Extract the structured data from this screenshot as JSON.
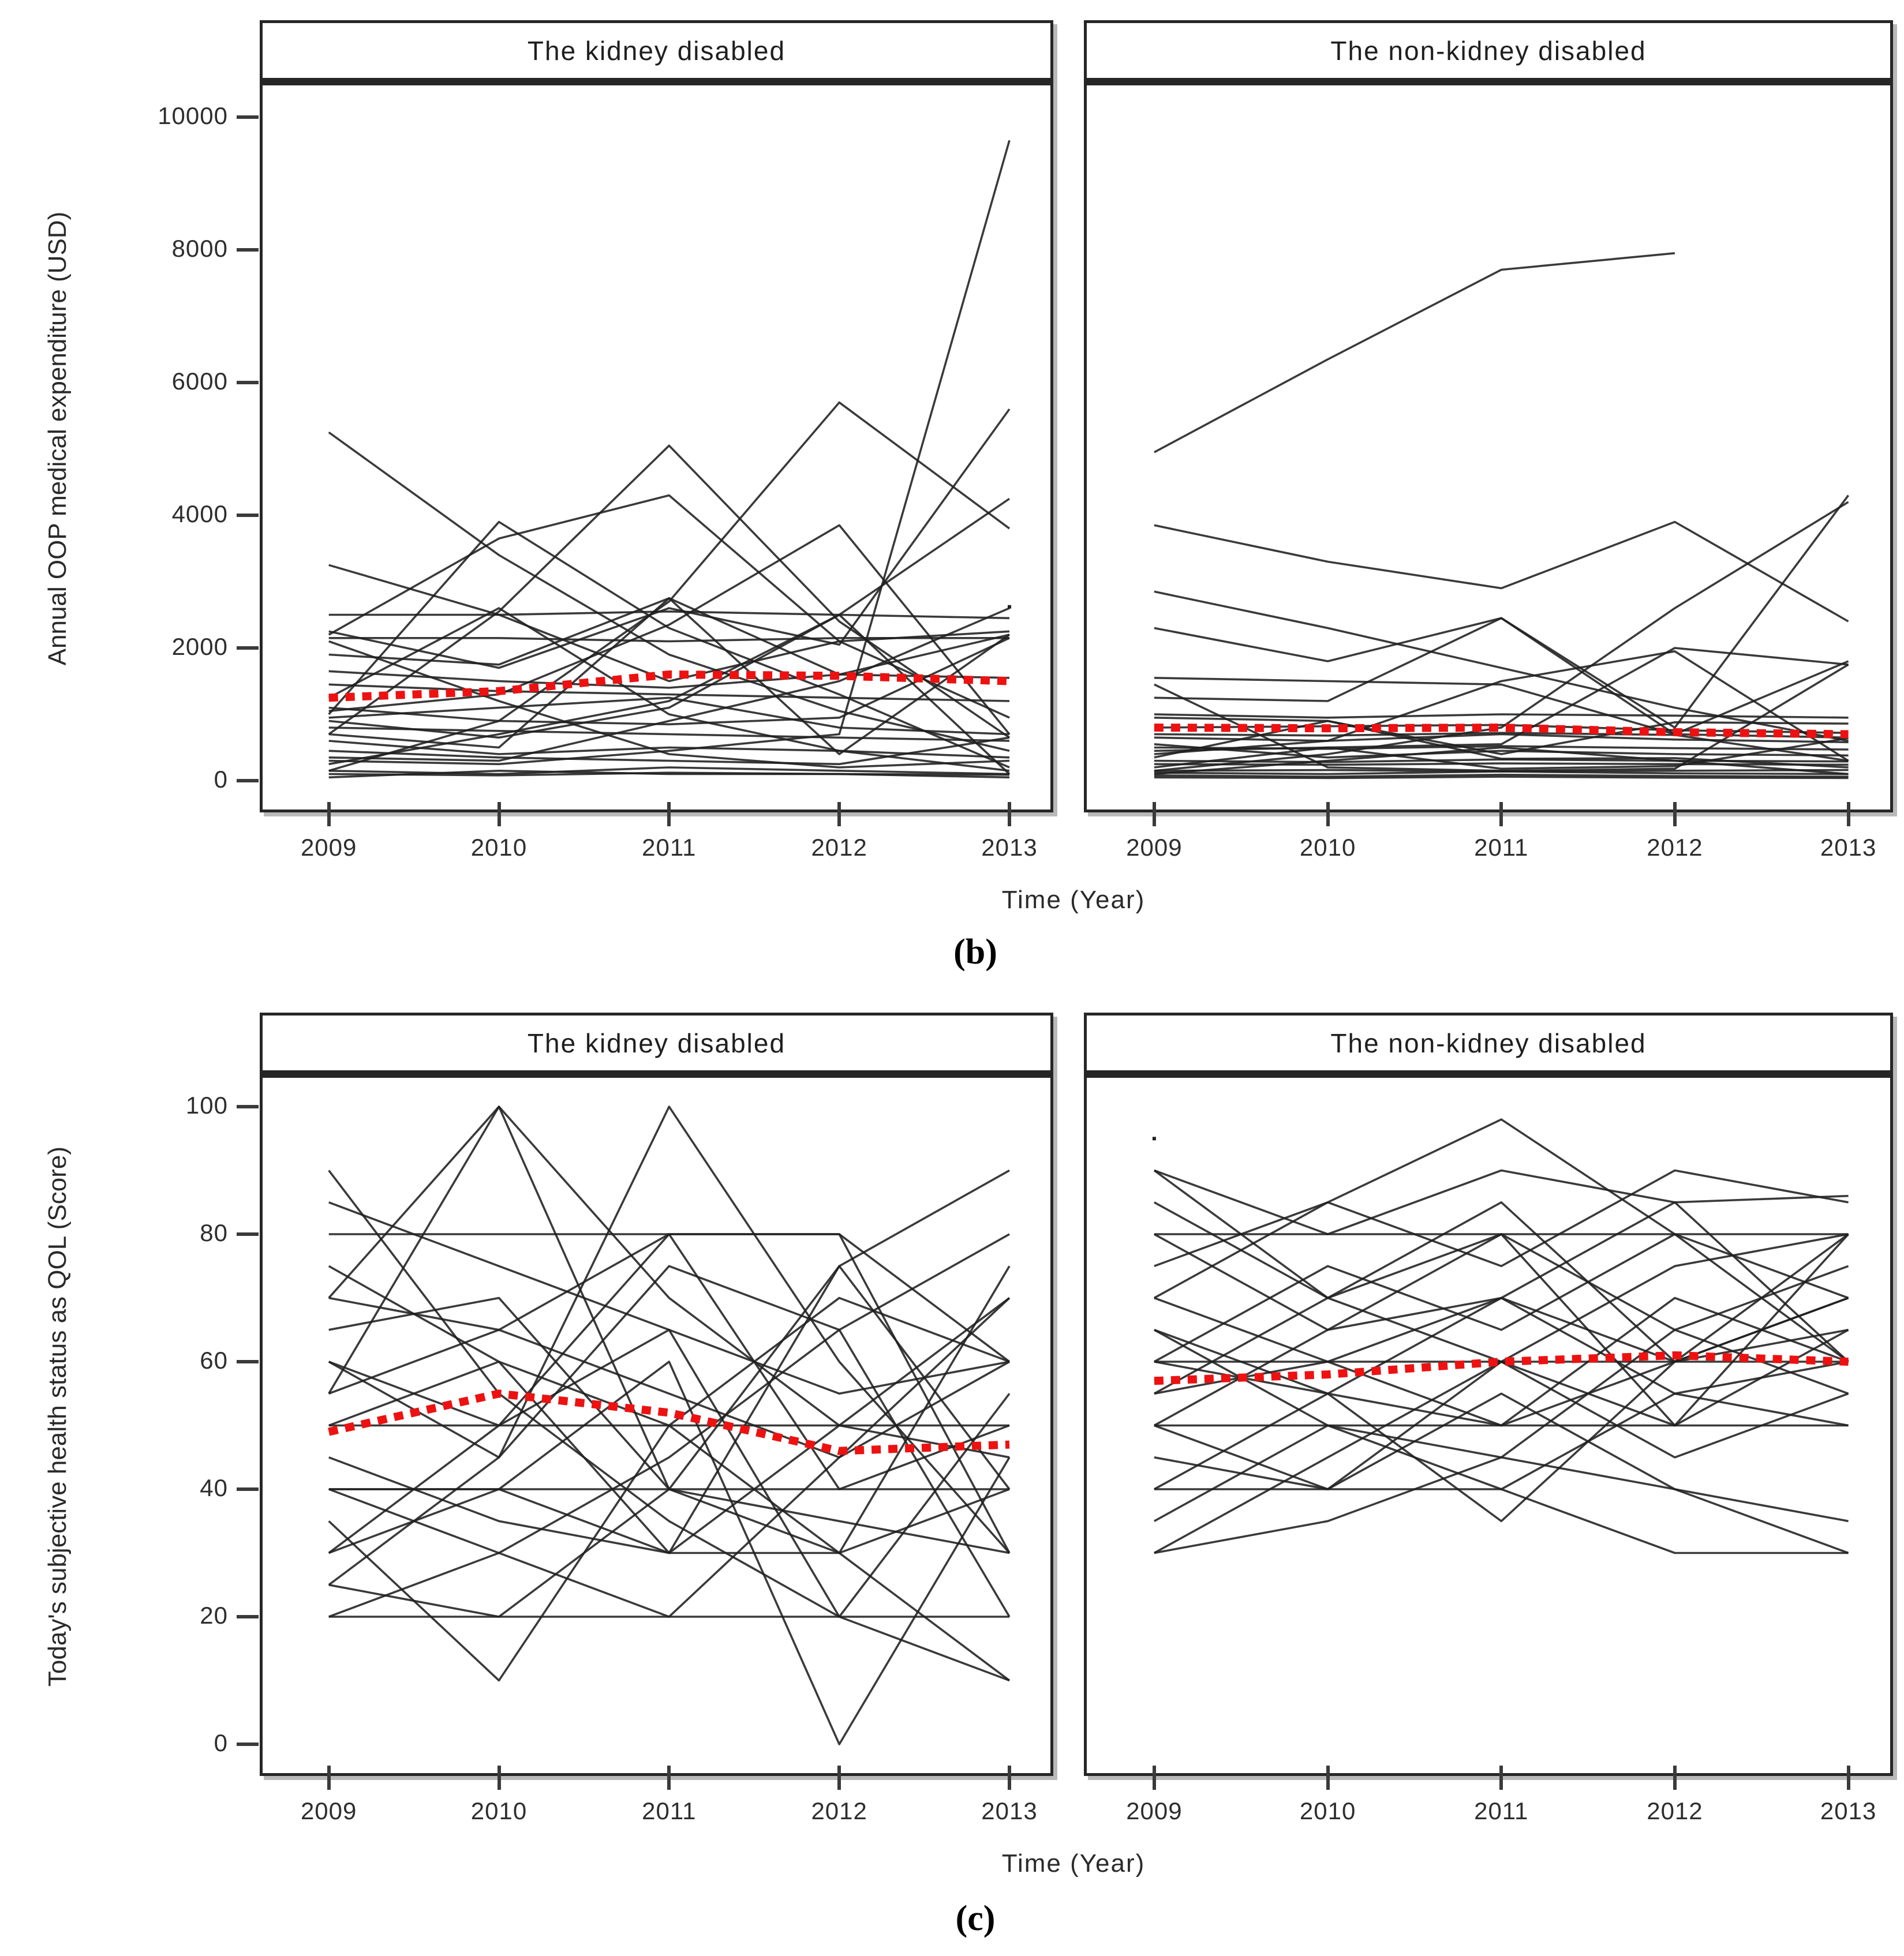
{
  "colors": {
    "individual_line": "#1f1f1f",
    "mean_line": "#ee1111",
    "axis": "#262626",
    "shadow": "#b9b9b9",
    "background": "#ffffff"
  },
  "chart_data": [
    {
      "id": "b",
      "type": "line",
      "caption": "(b)",
      "xlabel": "Time (Year)",
      "ylabel": "Annual OOP medical expenditure (USD)",
      "x": [
        2009,
        2010,
        2011,
        2012,
        2013
      ],
      "x_tick_labels": [
        "2009",
        "2010",
        "2011",
        "2012",
        "2013"
      ],
      "ylim": [
        0,
        10000
      ],
      "yticks": [
        0,
        2000,
        4000,
        6000,
        8000,
        10000
      ],
      "grid": false,
      "legend": "none",
      "panels": [
        {
          "title": "The kidney disabled",
          "mean": [
            1250,
            1350,
            1600,
            1580,
            1500
          ],
          "markers": [
            {
              "x": 2013,
              "y": 2620
            }
          ],
          "series": [
            [
              5250,
              3400,
              1900,
              1050,
              450
            ],
            [
              3250,
              2500,
              1500,
              2100,
              2250
            ],
            [
              1000,
              3900,
              2300,
              1300,
              200
            ],
            [
              700,
              2550,
              5050,
              2400,
              650
            ],
            [
              2200,
              3650,
              4300,
              2100,
              950
            ],
            [
              150,
              900,
              2700,
              5700,
              3800
            ],
            [
              300,
              250,
              450,
              700,
              9650
            ],
            [
              2250,
              1700,
              2600,
              2050,
              5600
            ],
            [
              1050,
              1300,
              2350,
              3850,
              700
            ],
            [
              900,
              650,
              1100,
              2500,
              4250
            ],
            [
              2500,
              2500,
              2550,
              2500,
              2450
            ],
            [
              2150,
              2150,
              2100,
              2150,
              2150
            ],
            [
              1900,
              1750,
              2750,
              1600,
              2200
            ],
            [
              1250,
              2600,
              1000,
              450,
              150
            ],
            [
              1650,
              1500,
              1400,
              1600,
              1550
            ],
            [
              950,
              1100,
              1250,
              800,
              700
            ],
            [
              250,
              700,
              1200,
              2500,
              100
            ],
            [
              700,
              500,
              2750,
              400,
              2200
            ],
            [
              1100,
              900,
              850,
              950,
              2150
            ],
            [
              450,
              350,
              300,
              250,
              650
            ],
            [
              150,
              100,
              200,
              150,
              100
            ],
            [
              50,
              150,
              100,
              100,
              50
            ],
            [
              2100,
              1200,
              400,
              200,
              300
            ],
            [
              600,
              400,
              500,
              450,
              350
            ],
            [
              100,
              80,
              120,
              100,
              90
            ],
            [
              800,
              750,
              700,
              650,
              600
            ],
            [
              350,
              300,
              900,
              1500,
              2600
            ],
            [
              1450,
              1350,
              1300,
              1250,
              1200
            ]
          ]
        },
        {
          "title": "The non-kidney disabled",
          "mean": [
            800,
            790,
            800,
            730,
            700
          ],
          "markers": [],
          "series": [
            [
              4950,
              6350,
              7700,
              7950,
              null
            ],
            [
              3850,
              3300,
              2900,
              3900,
              2400
            ],
            [
              2850,
              2300,
              1700,
              1100,
              600
            ],
            [
              2300,
              1800,
              2450,
              800,
              4300
            ],
            [
              150,
              400,
              800,
              2600,
              4200
            ],
            [
              1550,
              1500,
              1450,
              700,
              1800
            ],
            [
              800,
              820,
              840,
              760,
              720
            ],
            [
              1250,
              1200,
              2450,
              700,
              650
            ],
            [
              400,
              600,
              1500,
              1950,
              300
            ],
            [
              450,
              500,
              550,
              2000,
              1750
            ],
            [
              120,
              100,
              140,
              110,
              100
            ],
            [
              300,
              280,
              320,
              300,
              290
            ],
            [
              200,
              500,
              180,
              220,
              640
            ],
            [
              80,
              60,
              90,
              70,
              60
            ],
            [
              500,
              480,
              520,
              490,
              470
            ],
            [
              650,
              600,
              700,
              620,
              580
            ],
            [
              50,
              40,
              60,
              45,
              40
            ],
            [
              950,
              900,
              400,
              880,
              860
            ],
            [
              1450,
              200,
              150,
              180,
              1750
            ],
            [
              250,
              240,
              260,
              250,
              240
            ],
            [
              550,
              350,
              450,
              400,
              380
            ],
            [
              150,
              160,
              140,
              150,
              160
            ],
            [
              700,
              680,
              720,
              690,
              300
            ],
            [
              350,
              900,
              330,
              340,
              200
            ],
            [
              100,
              300,
              500,
              300,
              100
            ],
            [
              1000,
              950,
              1000,
              980,
              950
            ]
          ]
        }
      ]
    },
    {
      "id": "c",
      "type": "line",
      "caption": "(c)",
      "xlabel": "Time (Year)",
      "ylabel": "Today's subjective health status as QOL (Score)",
      "x": [
        2009,
        2010,
        2011,
        2012,
        2013
      ],
      "x_tick_labels": [
        "2009",
        "2010",
        "2011",
        "2012",
        "2013"
      ],
      "ylim": [
        0,
        100
      ],
      "yticks": [
        0,
        20,
        40,
        60,
        80,
        100
      ],
      "grid": false,
      "legend": "none",
      "panels": [
        {
          "title": "The kidney disabled",
          "mean": [
            49,
            55,
            52,
            46,
            47
          ],
          "markers": [],
          "series": [
            [
              90,
              55,
              35,
              20,
              10
            ],
            [
              70,
              100,
              70,
              50,
              45
            ],
            [
              55,
              100,
              40,
              75,
              90
            ],
            [
              25,
              45,
              100,
              60,
              30
            ],
            [
              80,
              80,
              80,
              80,
              30
            ],
            [
              60,
              50,
              80,
              80,
              60
            ],
            [
              50,
              50,
              50,
              50,
              50
            ],
            [
              40,
              40,
              40,
              40,
              40
            ],
            [
              20,
              20,
              20,
              20,
              20
            ],
            [
              35,
              10,
              50,
              70,
              60
            ],
            [
              65,
              70,
              40,
              30,
              75
            ],
            [
              30,
              40,
              60,
              0,
              45
            ],
            [
              75,
              60,
              50,
              30,
              10
            ],
            [
              20,
              30,
              45,
              65,
              80
            ],
            [
              45,
              35,
              30,
              50,
              70
            ],
            [
              85,
              75,
              65,
              55,
              60
            ],
            [
              25,
              20,
              40,
              35,
              30
            ],
            [
              60,
              45,
              75,
              65,
              20
            ],
            [
              40,
              30,
              20,
              45,
              60
            ],
            [
              70,
              65,
              80,
              40,
              50
            ],
            [
              50,
              60,
              30,
              75,
              40
            ],
            [
              30,
              50,
              65,
              20,
              55
            ],
            [
              40,
              40,
              30,
              30,
              40
            ],
            [
              55,
              65,
              55,
              45,
              70
            ]
          ]
        },
        {
          "title": "The non-kidney disabled",
          "mean": [
            57,
            58,
            60,
            61,
            60
          ],
          "markers": [
            {
              "x": 2009,
              "y": 95
            }
          ],
          "series": [
            [
              90,
              70,
              85,
              60,
              80
            ],
            [
              80,
              80,
              80,
              80,
              80
            ],
            [
              60,
              60,
              60,
              60,
              60
            ],
            [
              50,
              50,
              50,
              50,
              50
            ],
            [
              40,
              40,
              40,
              30,
              30
            ],
            [
              30,
              45,
              60,
              75,
              80
            ],
            [
              70,
              85,
              98,
              80,
              70
            ],
            [
              90,
              80,
              90,
              85,
              86
            ],
            [
              60,
              55,
              70,
              85,
              60
            ],
            [
              50,
              65,
              80,
              50,
              65
            ],
            [
              40,
              55,
              35,
              60,
              70
            ],
            [
              65,
              50,
              45,
              65,
              55
            ],
            [
              55,
              70,
              60,
              50,
              80
            ],
            [
              45,
              40,
              55,
              40,
              35
            ],
            [
              70,
              60,
              50,
              70,
              60
            ],
            [
              35,
              50,
              40,
              55,
              50
            ],
            [
              80,
              65,
              70,
              60,
              70
            ],
            [
              60,
              75,
              65,
              80,
              60
            ],
            [
              50,
              40,
              60,
              45,
              55
            ],
            [
              75,
              85,
              75,
              90,
              85
            ],
            [
              65,
              55,
              50,
              60,
              65
            ],
            [
              30,
              35,
              45,
              40,
              30
            ],
            [
              85,
              70,
              80,
              65,
              75
            ],
            [
              55,
              60,
              70,
              55,
              60
            ]
          ]
        }
      ]
    }
  ]
}
